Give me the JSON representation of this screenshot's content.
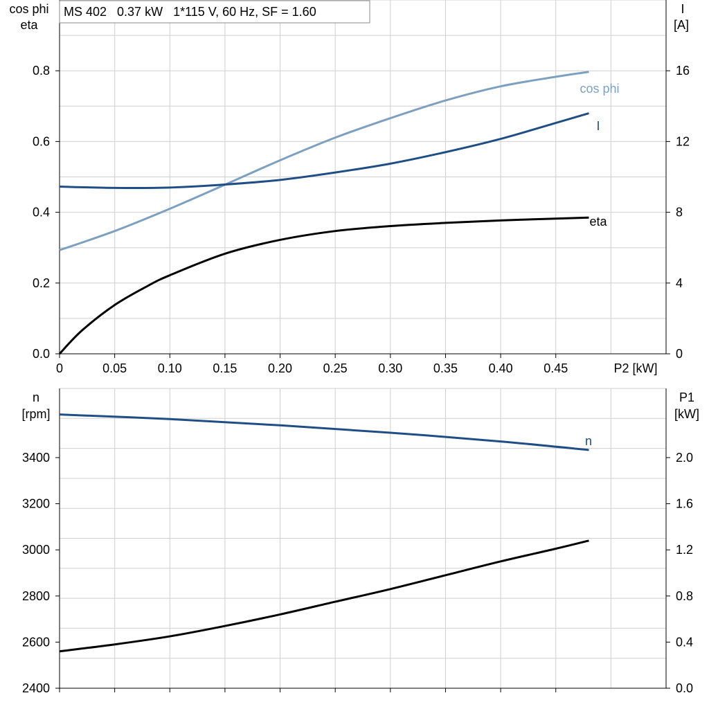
{
  "title": "MS 402   0.37 kW   1*115 V, 60 Hz, SF = 1.60",
  "colors": {
    "cos_phi": "#7ea0c0",
    "current": "#1f4e85",
    "eta": "#000000",
    "speed": "#1f4e85",
    "p1": "#000000",
    "grid": "#cfcfcf"
  },
  "chart_data": [
    {
      "type": "line",
      "x_axis": {
        "label": "P2 [kW]",
        "range": [
          0,
          0.55
        ],
        "ticks": [
          0,
          0.05,
          0.1,
          0.15,
          0.2,
          0.25,
          0.3,
          0.35,
          0.4,
          0.45
        ],
        "tick_labels": [
          "0",
          "0.05",
          "0.10",
          "0.15",
          "0.20",
          "0.25",
          "0.30",
          "0.35",
          "0.40",
          "0.45"
        ]
      },
      "y_left": {
        "label_line1": "cos phi",
        "label_line2": "eta",
        "range": [
          0,
          1.0
        ],
        "ticks": [
          0,
          0.2,
          0.4,
          0.6,
          0.8
        ],
        "tick_labels": [
          "0.0",
          "0.2",
          "0.4",
          "0.6",
          "0.8"
        ]
      },
      "y_right": {
        "label_line1": "I",
        "label_line2": "[A]",
        "range": [
          0,
          20
        ],
        "ticks": [
          0,
          4,
          8,
          12,
          16
        ],
        "tick_labels": [
          "0",
          "4",
          "8",
          "12",
          "16"
        ]
      },
      "grid": true,
      "series": [
        {
          "name": "cos phi",
          "axis": "left",
          "x": [
            0,
            0.05,
            0.1,
            0.15,
            0.2,
            0.25,
            0.3,
            0.35,
            0.4,
            0.45,
            0.48
          ],
          "y": [
            0.293,
            0.347,
            0.41,
            0.478,
            0.547,
            0.611,
            0.666,
            0.716,
            0.756,
            0.783,
            0.797
          ]
        },
        {
          "name": "I",
          "axis": "right",
          "x": [
            0,
            0.05,
            0.1,
            0.15,
            0.2,
            0.25,
            0.3,
            0.35,
            0.4,
            0.45,
            0.48
          ],
          "y": [
            9.45,
            9.38,
            9.4,
            9.57,
            9.83,
            10.25,
            10.75,
            11.4,
            12.15,
            13.05,
            13.6
          ]
        },
        {
          "name": "eta",
          "axis": "left",
          "x": [
            0,
            0.02,
            0.05,
            0.08,
            0.1,
            0.15,
            0.2,
            0.25,
            0.3,
            0.35,
            0.4,
            0.45,
            0.48
          ],
          "y": [
            0.0,
            0.065,
            0.138,
            0.192,
            0.222,
            0.283,
            0.322,
            0.347,
            0.361,
            0.37,
            0.377,
            0.382,
            0.385
          ]
        }
      ]
    },
    {
      "type": "line",
      "x_axis": {
        "range": [
          0,
          0.55
        ],
        "ticks": [
          0,
          0.05,
          0.1,
          0.15,
          0.2,
          0.25,
          0.3,
          0.35,
          0.4,
          0.45
        ]
      },
      "y_left": {
        "label_line1": "n",
        "label_line2": "[rpm]",
        "range": [
          2400,
          3700
        ],
        "ticks": [
          2400,
          2600,
          2800,
          3000,
          3200,
          3400
        ],
        "tick_labels": [
          "2400",
          "2600",
          "2800",
          "3000",
          "3200",
          "3400"
        ]
      },
      "y_right": {
        "label_line1": "P1",
        "label_line2": "[kW]",
        "range": [
          0,
          2.6
        ],
        "ticks": [
          0,
          0.4,
          0.8,
          1.2,
          1.6,
          2.0
        ],
        "tick_labels": [
          "0.0",
          "0.4",
          "0.8",
          "1.2",
          "1.6",
          "2.0"
        ]
      },
      "grid": true,
      "series": [
        {
          "name": "n",
          "axis": "left",
          "x": [
            0,
            0.1,
            0.2,
            0.3,
            0.4,
            0.48
          ],
          "y": [
            3587,
            3567,
            3540,
            3508,
            3470,
            3433
          ]
        },
        {
          "name": "",
          "axis": "right",
          "x": [
            0,
            0.05,
            0.1,
            0.15,
            0.2,
            0.25,
            0.3,
            0.35,
            0.4,
            0.45,
            0.48
          ],
          "y": [
            0.32,
            0.38,
            0.45,
            0.54,
            0.64,
            0.75,
            0.86,
            0.98,
            1.1,
            1.21,
            1.28
          ]
        }
      ]
    }
  ]
}
